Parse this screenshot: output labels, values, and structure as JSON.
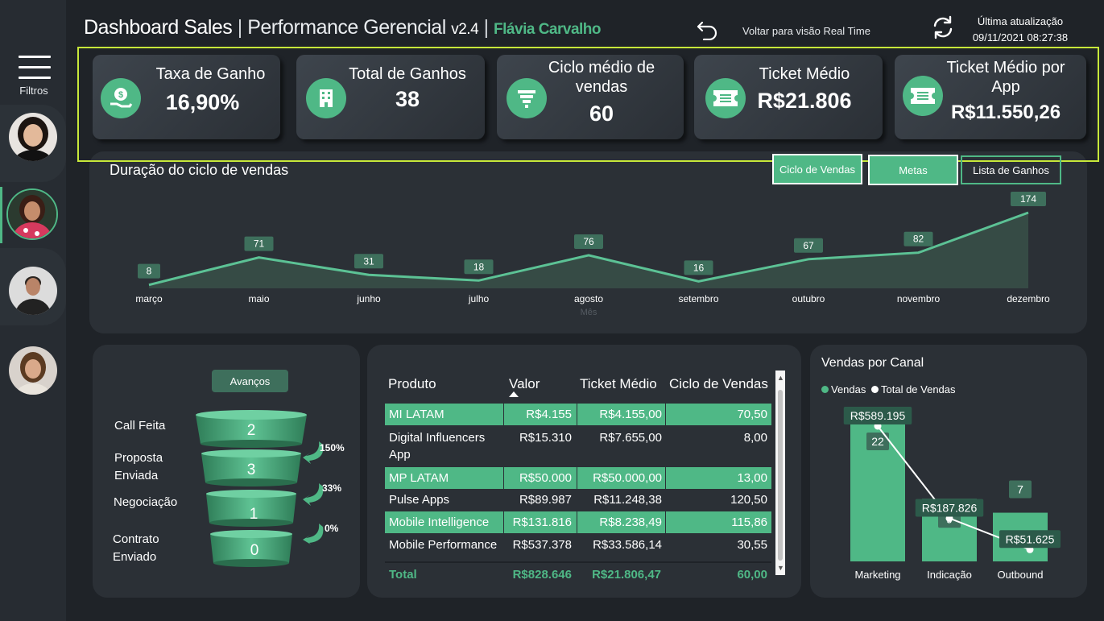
{
  "header": {
    "title_main": "Dashboard Sales",
    "title_sep": "|",
    "title_sub": "Performance Gerencial",
    "version": "v2.4",
    "user_sep": "|",
    "user_name": "Flávia Carvalho",
    "back_label": "Voltar para visão Real Time",
    "update_title": "Última atualização",
    "update_time": "09/11/2021 08:27:38"
  },
  "sidebar": {
    "filters_label": "Filtros",
    "avatars": [
      "avatar-woman-1",
      "avatar-woman-2-selected",
      "avatar-man",
      "avatar-woman-3"
    ]
  },
  "kpis": [
    {
      "label": "Taxa de Ganho",
      "value": "16,90%",
      "icon": "money-hand-icon"
    },
    {
      "label": "Total de Ganhos",
      "value": "38",
      "icon": "building-icon"
    },
    {
      "label": "Ciclo médio de vendas",
      "value": "60",
      "icon": "funnel-icon"
    },
    {
      "label": "Ticket Médio",
      "value": "R$21.806",
      "icon": "ticket-icon"
    },
    {
      "label": "Ticket Médio por App",
      "value": "R$11.550,26",
      "icon": "ticket-icon"
    }
  ],
  "cycle_chart": {
    "title": "Duração do ciclo de vendas",
    "buttons": {
      "ciclo": "Ciclo de Vendas",
      "metas": "Metas",
      "lista": "Lista de Ganhos"
    },
    "xlabel": "Mês"
  },
  "funnel": {
    "button": "Avanços",
    "stages": [
      {
        "label": "Call Feita",
        "value": "2"
      },
      {
        "label": "Proposta Enviada",
        "value": "3"
      },
      {
        "label": "Negociação",
        "value": "1"
      },
      {
        "label": "Contrato Enviado",
        "value": "0"
      }
    ],
    "conversions": [
      "150%",
      "33%",
      "0%"
    ]
  },
  "table": {
    "headers": [
      "Produto",
      "Valor",
      "Ticket Médio",
      "Ciclo de Vendas"
    ],
    "rows": [
      [
        "MI LATAM",
        "R$4.155",
        "R$4.155,00",
        "70,50"
      ],
      [
        "Digital Influencers App",
        "R$15.310",
        "R$7.655,00",
        "8,00"
      ],
      [
        "MP LATAM",
        "R$50.000",
        "R$50.000,00",
        "13,00"
      ],
      [
        "Pulse Apps",
        "R$89.987",
        "R$11.248,38",
        "120,50"
      ],
      [
        "Mobile Intelligence",
        "R$131.816",
        "R$8.238,49",
        "115,86"
      ],
      [
        "Mobile Performance",
        "R$537.378",
        "R$33.586,14",
        "30,55"
      ]
    ],
    "total": [
      "Total",
      "R$828.646",
      "R$21.806,47",
      "60,00"
    ]
  },
  "channels": {
    "title": "Vendas por Canal",
    "legend": [
      "Vendas",
      "Total de Vendas"
    ]
  },
  "colors": {
    "accent": "#4fb886",
    "background": "#1f2328",
    "panel": "#2b3036",
    "highlight_frame": "#c7e83a"
  },
  "chart_data": [
    {
      "type": "area",
      "categories": [
        "março",
        "maio",
        "junho",
        "julho",
        "agosto",
        "setembro",
        "outubro",
        "novembro",
        "dezembro"
      ],
      "values": [
        8,
        71,
        31,
        18,
        76,
        16,
        67,
        82,
        174
      ],
      "xlabel": "Mês",
      "data_labels": true,
      "grid": false
    },
    {
      "type": "bar",
      "categories": [
        "Marketing",
        "Indicação",
        "Outbound"
      ],
      "series": [
        {
          "name": "Vendas",
          "values": [
            22,
            9,
            7
          ],
          "labels": [
            "22",
            "9",
            "7"
          ]
        },
        {
          "name": "Total de Vendas",
          "values": [
            589195,
            187826,
            51625
          ],
          "labels": [
            "R$589.195",
            "R$187.826",
            "R$51.625"
          ]
        }
      ],
      "legend": "top-left"
    }
  ]
}
